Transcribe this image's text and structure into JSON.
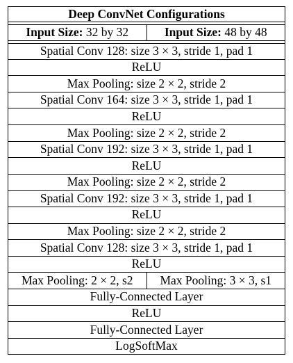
{
  "title": "Deep ConvNet Configurations",
  "input_sizes": [
    {
      "label": "Input Size:",
      "value": "32 by 32"
    },
    {
      "label": "Input Size:",
      "value": "48 by 48"
    }
  ],
  "layers": [
    "Spatial Conv 128: size 3 × 3, stride 1, pad 1",
    "ReLU",
    "Max Pooling: size 2 × 2, stride 2",
    "Spatial Conv 164: size 3 × 3, stride 1, pad 1",
    "ReLU",
    "Max Pooling: size 2 × 2, stride 2",
    "Spatial Conv 192: size 3 × 3, stride 1, pad 1",
    "ReLU",
    "Max Pooling: size 2 × 2, stride 2",
    "Spatial Conv 192: size 3 × 3, stride 1, pad 1",
    "ReLU",
    "Max Pooling: size 2 × 2, stride 2",
    "Spatial Conv 128: size 3 × 3, stride 1, pad 1",
    "ReLU"
  ],
  "split_pooling": [
    "Max Pooling: 2 × 2, s2",
    "Max Pooling: 3 × 3, s1"
  ],
  "tail_layers": [
    "Fully-Connected Layer",
    "ReLU",
    "Fully-Connected Layer",
    "LogSoftMax"
  ]
}
